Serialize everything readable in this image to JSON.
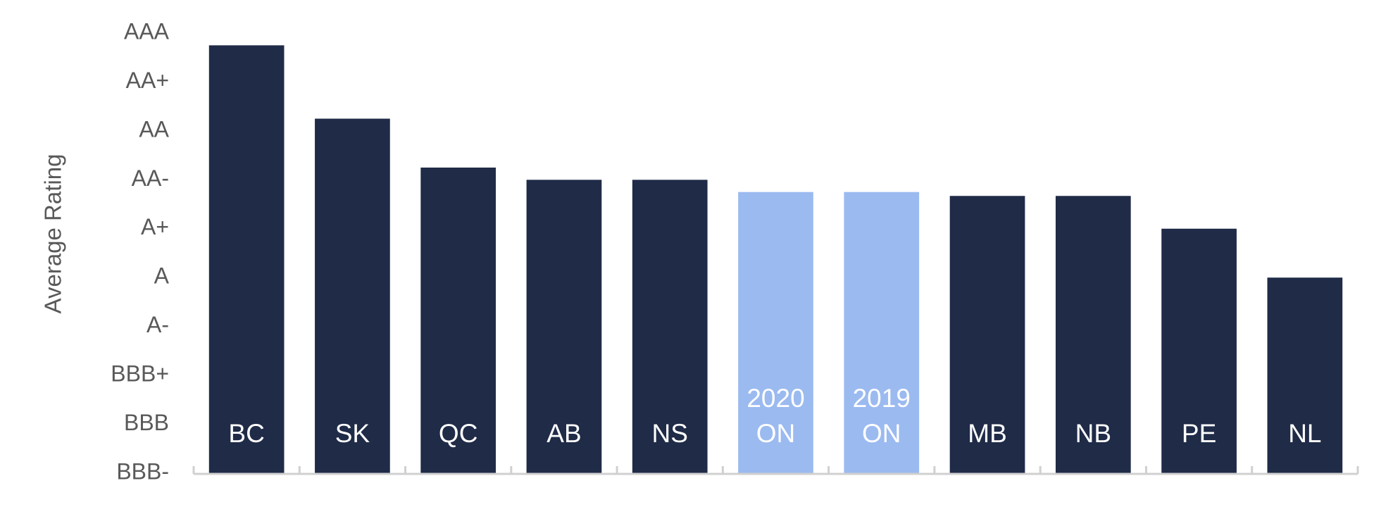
{
  "chart_data": {
    "type": "bar",
    "y_axis_label": "Average Rating",
    "categories": [
      "BC",
      "SK",
      "QC",
      "AB",
      "NS",
      "2020 ON",
      "2019 ON",
      "MB",
      "NB",
      "PE",
      "NL"
    ],
    "values": [
      8.75,
      7.25,
      6.25,
      6,
      6,
      5.75,
      5.75,
      5.67,
      5.67,
      5,
      4
    ],
    "colors": [
      "#1f2b47",
      "#1f2b47",
      "#1f2b47",
      "#1f2b47",
      "#1f2b47",
      "#9bbaf0",
      "#9bbaf0",
      "#1f2b47",
      "#1f2b47",
      "#1f2b47",
      "#1f2b47"
    ],
    "ylim": [
      0,
      9
    ],
    "yticks": [
      {
        "value": 0,
        "label": "BBB-"
      },
      {
        "value": 1,
        "label": "BBB"
      },
      {
        "value": 2,
        "label": "BBB+"
      },
      {
        "value": 3,
        "label": "A-"
      },
      {
        "value": 4,
        "label": "A"
      },
      {
        "value": 5,
        "label": "A+"
      },
      {
        "value": 6,
        "label": "AA-"
      },
      {
        "value": 7,
        "label": "AA"
      },
      {
        "value": 8,
        "label": "AA+"
      },
      {
        "value": 9,
        "label": "AAA"
      }
    ],
    "grid": false
  }
}
